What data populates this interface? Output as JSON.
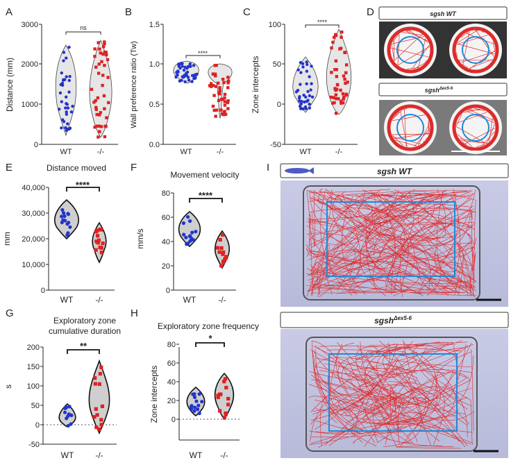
{
  "panels": {
    "A": {
      "letter": "A",
      "ylabel": "Distance (mm)",
      "yticks": [
        "0",
        "1000",
        "2000",
        "3000"
      ],
      "xticks": [
        "WT",
        "-/-"
      ],
      "sig": "ns"
    },
    "B": {
      "letter": "B",
      "ylabel": "Wall preference ratio (Tw)",
      "yticks": [
        "0.0",
        "0.5",
        "1.0",
        "1.5"
      ],
      "xticks": [
        "WT",
        "-/-"
      ],
      "sig": "****"
    },
    "C": {
      "letter": "C",
      "ylabel": "Zone intercepts",
      "yticks": [
        "-50",
        "0",
        "50",
        "100"
      ],
      "xticks": [
        "WT",
        "-/-"
      ],
      "sig": "****"
    },
    "D": {
      "letter": "D",
      "label_wt": "sgsh WT",
      "label_mut": "sgsh",
      "label_mut_sup": "Δex5-6"
    },
    "E": {
      "letter": "E",
      "title": "Distance moved",
      "ylabel": "mm",
      "yticks": [
        "0",
        "10,000",
        "20,000",
        "30,000",
        "40,000"
      ],
      "xticks": [
        "WT",
        "-/-"
      ],
      "sig": "****"
    },
    "F": {
      "letter": "F",
      "title": "Movement velocity",
      "ylabel": "mm/s",
      "yticks": [
        "0",
        "20",
        "40",
        "60",
        "80"
      ],
      "xticks": [
        "WT",
        "-/-"
      ],
      "sig": "****"
    },
    "G": {
      "letter": "G",
      "title_line1": "Exploratory zone",
      "title_line2": "cumulative duration",
      "ylabel": "s",
      "yticks": [
        "-50",
        "0",
        "50",
        "100",
        "150",
        "200"
      ],
      "xticks": [
        "WT",
        "-/-"
      ],
      "sig": "**"
    },
    "H": {
      "letter": "H",
      "title": "Exploratory zone frequency",
      "ylabel": "Zone intercepts",
      "yticks": [
        "0",
        "20",
        "40",
        "60",
        "80"
      ],
      "xticks": [
        "WT",
        "-/-"
      ],
      "sig": "*"
    },
    "I": {
      "letter": "I",
      "label_wt": "sgsh WT",
      "label_mut": "sgsh",
      "label_mut_sup": "Δex5-6"
    }
  },
  "colors": {
    "wt": "#2233cc",
    "mut": "#dd2222",
    "violin": "#e6e6e6",
    "track": "#dd2b2b",
    "zone": "#1e88d8"
  }
}
